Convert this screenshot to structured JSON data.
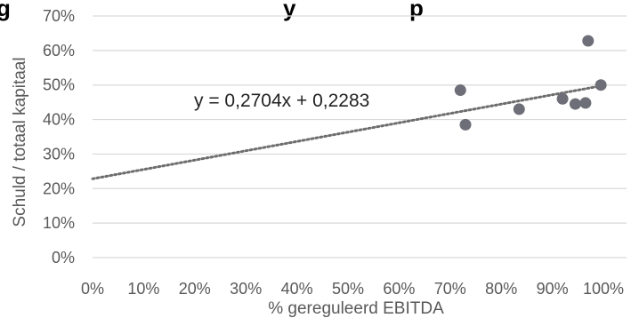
{
  "chart_data": {
    "type": "scatter",
    "title": "",
    "xlabel": "% gereguleerd EBITDA",
    "ylabel": "Schuld / totaal kapitaal",
    "xlim": [
      0,
      1
    ],
    "ylim": [
      0,
      0.7
    ],
    "x_ticks": [
      "0%",
      "10%",
      "20%",
      "30%",
      "40%",
      "50%",
      "60%",
      "70%",
      "80%",
      "90%",
      "100%"
    ],
    "y_ticks": [
      "0%",
      "10%",
      "20%",
      "30%",
      "40%",
      "50%",
      "60%",
      "70%"
    ],
    "points": [
      {
        "x": 0.72,
        "y": 0.485
      },
      {
        "x": 0.73,
        "y": 0.385
      },
      {
        "x": 0.835,
        "y": 0.43
      },
      {
        "x": 0.92,
        "y": 0.46
      },
      {
        "x": 0.945,
        "y": 0.445
      },
      {
        "x": 0.965,
        "y": 0.448
      },
      {
        "x": 0.97,
        "y": 0.628
      },
      {
        "x": 0.995,
        "y": 0.5
      }
    ],
    "trendline": {
      "type": "linear",
      "slope": 0.2704,
      "intercept": 0.2283,
      "equation": "y = 0,2704x + 0,2283"
    },
    "grid": "horizontal",
    "legend": "none",
    "colors": {
      "points": "#6e6e78",
      "trendline": "#6e6e6e",
      "gridline": "#d9d9d9",
      "text": "#595959"
    }
  }
}
